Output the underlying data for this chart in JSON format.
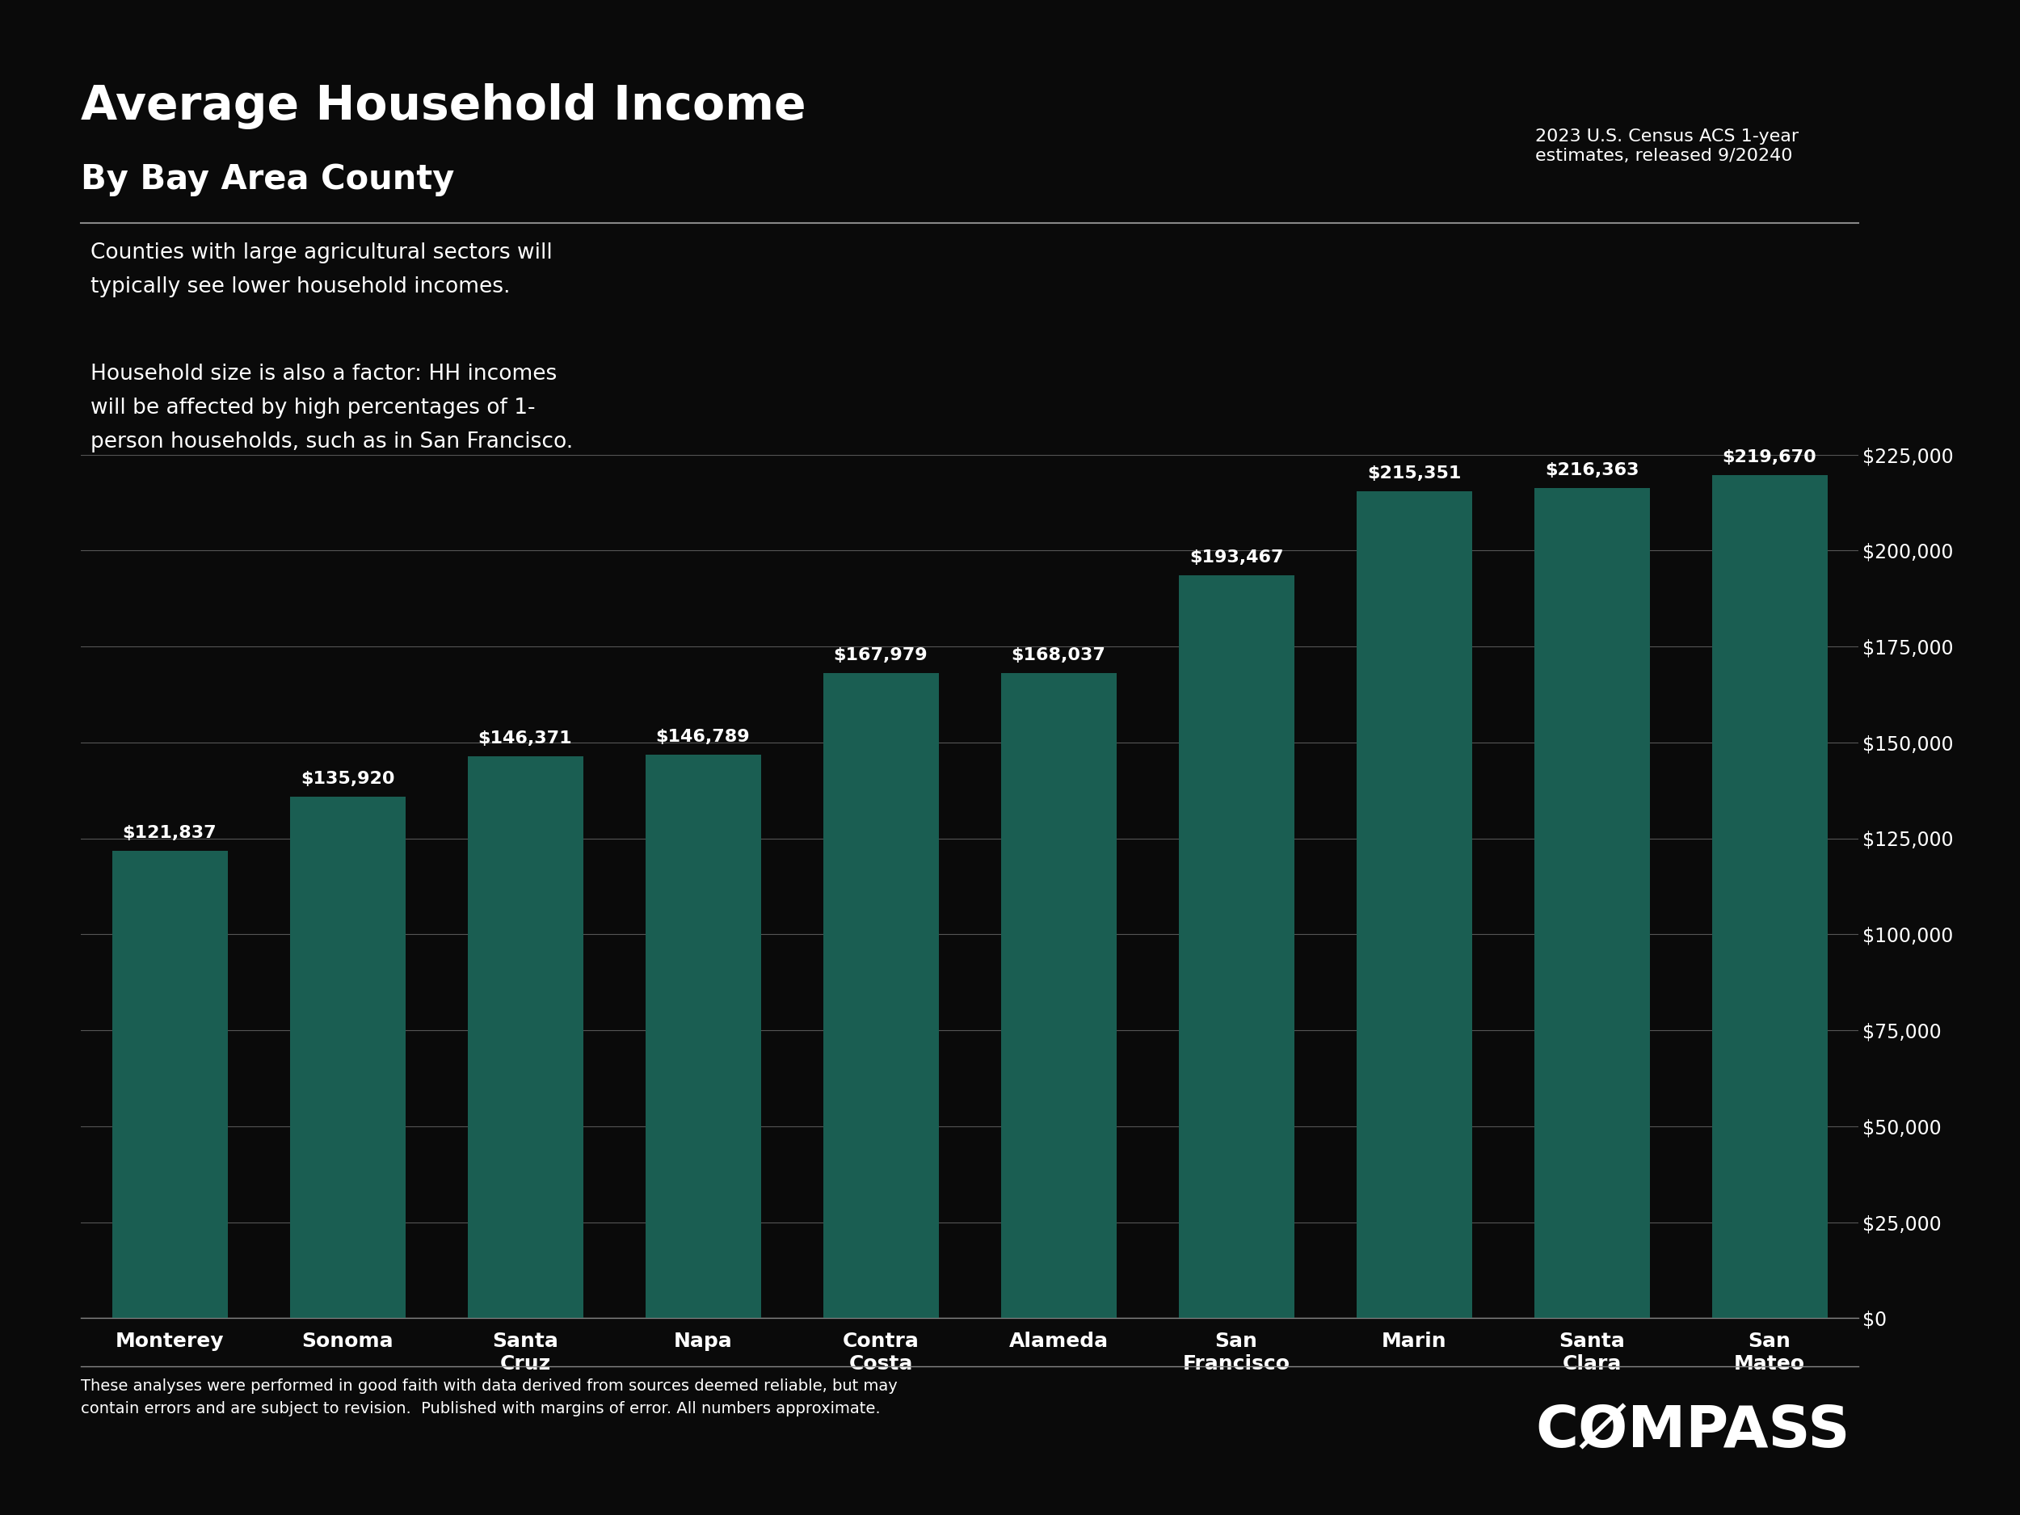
{
  "title": "Average Household Income",
  "subtitle": "By Bay Area County",
  "source_text": "2023 U.S. Census ACS 1-year\nestimates, released 9/20240",
  "categories": [
    "Monterey",
    "Sonoma",
    "Santa\nCruz",
    "Napa",
    "Contra\nCosta",
    "Alameda",
    "San\nFrancisco",
    "Marin",
    "Santa\nClara",
    "San\nMateo"
  ],
  "values": [
    121837,
    135920,
    146371,
    146789,
    167979,
    168037,
    193467,
    215351,
    216363,
    219670
  ],
  "bar_color": "#1a5e52",
  "background_color": "#0a0a0a",
  "text_color": "#ffffff",
  "annotation_line1": "Counties with large agricultural sectors will\ntypically see lower household incomes.",
  "annotation_line2": "Household size is also a factor: HH incomes\nwill be affected by high percentages of 1-\nperson households, such as in San Francisco.",
  "footer_text": "These analyses were performed in good faith with data derived from sources deemed reliable, but may\ncontain errors and are subject to revision.  Published with margins of error. All numbers approximate.",
  "compass_text": "CØMPASS",
  "ylim": [
    0,
    225000
  ],
  "yticks": [
    0,
    25000,
    50000,
    75000,
    100000,
    125000,
    150000,
    175000,
    200000,
    225000
  ]
}
